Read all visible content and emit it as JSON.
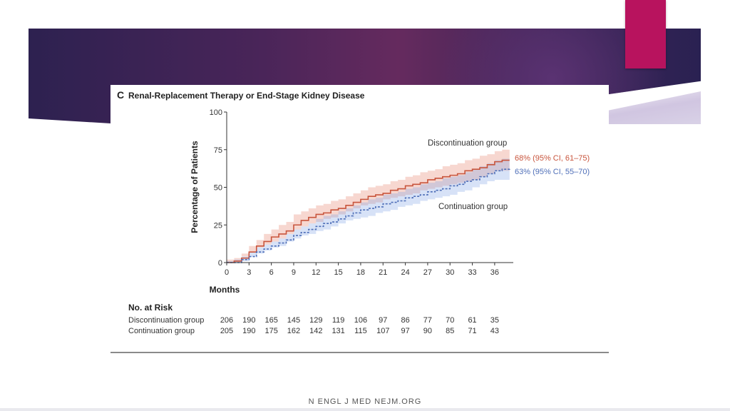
{
  "slide": {
    "footer": "N ENGL J MED   NEJM.ORG",
    "accent_color": "#b8135e",
    "banner_color": "#4a2559"
  },
  "chart_data": {
    "type": "line",
    "panel_letter": "C",
    "title": "Renal-Replacement Therapy or End-Stage Kidney Disease",
    "xlabel": "Months",
    "ylabel": "Percentage of Patients",
    "xlim": [
      0,
      38.5
    ],
    "ylim": [
      0,
      100
    ],
    "x_ticks": [
      0,
      3,
      6,
      9,
      12,
      15,
      18,
      21,
      24,
      27,
      30,
      33,
      36
    ],
    "y_ticks": [
      0,
      25,
      50,
      75,
      100
    ],
    "series": [
      {
        "name": "Discontinuation group",
        "color": "#c8553d",
        "line_style": "solid",
        "x": [
          0,
          1,
          2,
          3,
          4,
          5,
          6,
          7,
          8,
          9,
          10,
          11,
          12,
          13,
          14,
          15,
          16,
          17,
          18,
          19,
          20,
          21,
          22,
          23,
          24,
          25,
          26,
          27,
          28,
          29,
          30,
          31,
          32,
          33,
          34,
          35,
          36,
          37,
          38
        ],
        "y": [
          0,
          1,
          3,
          7,
          11,
          14,
          17,
          19,
          21,
          25,
          28,
          30,
          32,
          33,
          35,
          36,
          38,
          40,
          42,
          44,
          45,
          46,
          48,
          49,
          51,
          52,
          53,
          55,
          56,
          57,
          58,
          59,
          61,
          62,
          63,
          65,
          67,
          68,
          68
        ],
        "ci_lower": [
          0,
          0,
          1,
          4,
          7,
          10,
          12,
          14,
          16,
          19,
          22,
          24,
          26,
          27,
          29,
          30,
          32,
          34,
          36,
          38,
          39,
          40,
          42,
          43,
          44,
          45,
          46,
          48,
          49,
          50,
          51,
          52,
          53,
          54,
          55,
          57,
          59,
          61,
          61
        ],
        "ci_upper": [
          2,
          3,
          6,
          11,
          15,
          19,
          22,
          25,
          27,
          32,
          34,
          36,
          38,
          39,
          41,
          42,
          44,
          46,
          48,
          50,
          51,
          52,
          54,
          55,
          57,
          58,
          60,
          61,
          62,
          64,
          65,
          66,
          68,
          69,
          71,
          72,
          74,
          75,
          75
        ],
        "end_label": "68% (95% CI, 61–75)"
      },
      {
        "name": "Continuation group",
        "color": "#4f6fb8",
        "line_style": "dashed",
        "x": [
          0,
          1,
          2,
          3,
          4,
          5,
          6,
          7,
          8,
          9,
          10,
          11,
          12,
          13,
          14,
          15,
          16,
          17,
          18,
          19,
          20,
          21,
          22,
          23,
          24,
          25,
          26,
          27,
          28,
          29,
          30,
          31,
          32,
          33,
          34,
          35,
          36,
          37,
          38
        ],
        "y": [
          0,
          0,
          2,
          4,
          7,
          9,
          11,
          13,
          15,
          18,
          20,
          22,
          24,
          26,
          27,
          29,
          31,
          33,
          35,
          36,
          37,
          39,
          40,
          41,
          43,
          44,
          45,
          47,
          48,
          49,
          51,
          52,
          54,
          55,
          57,
          59,
          61,
          62,
          63
        ],
        "ci_lower": [
          0,
          0,
          0,
          1,
          4,
          6,
          8,
          10,
          11,
          14,
          16,
          18,
          19,
          21,
          22,
          24,
          26,
          28,
          29,
          30,
          31,
          33,
          34,
          35,
          37,
          38,
          39,
          41,
          42,
          43,
          44,
          45,
          47,
          48,
          50,
          52,
          54,
          55,
          55
        ],
        "ci_upper": [
          1,
          2,
          4,
          7,
          10,
          12,
          14,
          16,
          19,
          22,
          24,
          26,
          29,
          31,
          32,
          34,
          36,
          38,
          40,
          42,
          43,
          45,
          46,
          47,
          49,
          50,
          52,
          53,
          54,
          56,
          57,
          58,
          60,
          62,
          64,
          66,
          68,
          69,
          70
        ],
        "end_label": "63% (95% CI, 55–70)"
      }
    ],
    "annotations": [
      "Discontinuation group",
      "Continuation group"
    ],
    "at_risk": {
      "title": "No. at Risk",
      "rows": [
        {
          "label": "Discontinuation group",
          "values": [
            206,
            190,
            165,
            145,
            129,
            119,
            106,
            97,
            86,
            77,
            70,
            61,
            35
          ]
        },
        {
          "label": "Continuation group",
          "values": [
            205,
            190,
            175,
            162,
            142,
            131,
            115,
            107,
            97,
            90,
            85,
            71,
            43
          ]
        }
      ]
    }
  }
}
